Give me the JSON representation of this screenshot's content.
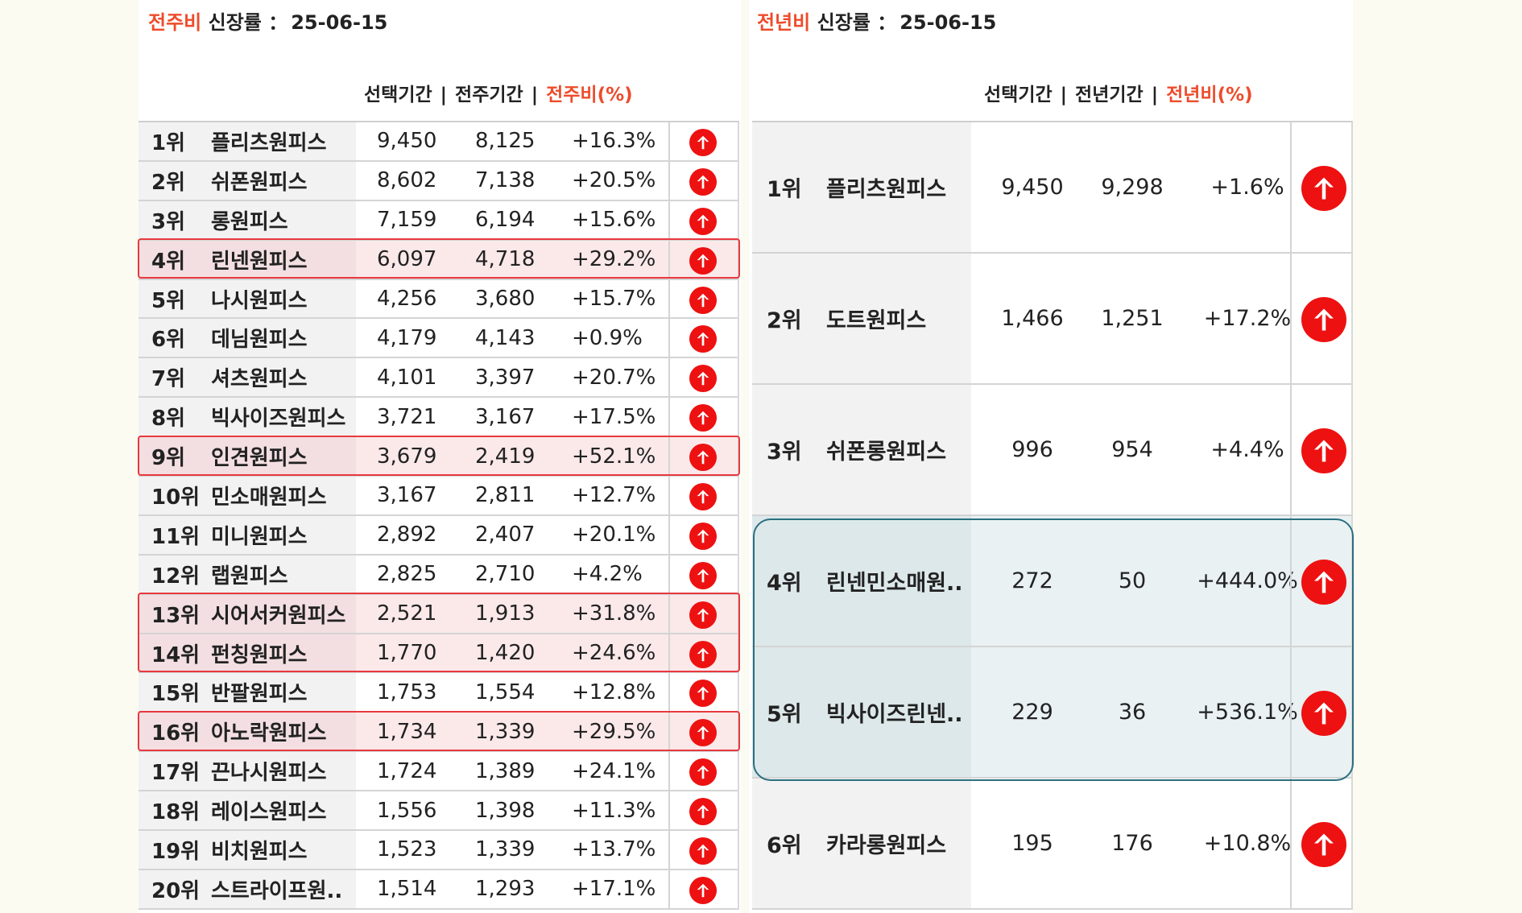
{
  "left": {
    "title_accent": "전주비",
    "title_rest": "신장률 ：",
    "date": "25-06-15",
    "headers": {
      "selected": "선택기간",
      "sep": "|",
      "previous": "전주기간",
      "ratio": "전주비(%)"
    },
    "rows": [
      {
        "rank": "1위",
        "name": "플리츠원피스",
        "selected": "9,450",
        "previous": "8,125",
        "ratio": "+16.3%"
      },
      {
        "rank": "2위",
        "name": "쉬폰원피스",
        "selected": "8,602",
        "previous": "7,138",
        "ratio": "+20.5%"
      },
      {
        "rank": "3위",
        "name": "롱원피스",
        "selected": "7,159",
        "previous": "6,194",
        "ratio": "+15.6%"
      },
      {
        "rank": "4위",
        "name": "린넨원피스",
        "selected": "6,097",
        "previous": "4,718",
        "ratio": "+29.2%"
      },
      {
        "rank": "5위",
        "name": "나시원피스",
        "selected": "4,256",
        "previous": "3,680",
        "ratio": "+15.7%"
      },
      {
        "rank": "6위",
        "name": "데님원피스",
        "selected": "4,179",
        "previous": "4,143",
        "ratio": "+0.9%"
      },
      {
        "rank": "7위",
        "name": "셔츠원피스",
        "selected": "4,101",
        "previous": "3,397",
        "ratio": "+20.7%"
      },
      {
        "rank": "8위",
        "name": "빅사이즈원피스",
        "selected": "3,721",
        "previous": "3,167",
        "ratio": "+17.5%"
      },
      {
        "rank": "9위",
        "name": "인견원피스",
        "selected": "3,679",
        "previous": "2,419",
        "ratio": "+52.1%"
      },
      {
        "rank": "10위",
        "name": "민소매원피스",
        "selected": "3,167",
        "previous": "2,811",
        "ratio": "+12.7%"
      },
      {
        "rank": "11위",
        "name": "미니원피스",
        "selected": "2,892",
        "previous": "2,407",
        "ratio": "+20.1%"
      },
      {
        "rank": "12위",
        "name": "랩원피스",
        "selected": "2,825",
        "previous": "2,710",
        "ratio": "+4.2%"
      },
      {
        "rank": "13위",
        "name": "시어서커원피스",
        "selected": "2,521",
        "previous": "1,913",
        "ratio": "+31.8%"
      },
      {
        "rank": "14위",
        "name": "펀칭원피스",
        "selected": "1,770",
        "previous": "1,420",
        "ratio": "+24.6%"
      },
      {
        "rank": "15위",
        "name": "반팔원피스",
        "selected": "1,753",
        "previous": "1,554",
        "ratio": "+12.8%"
      },
      {
        "rank": "16위",
        "name": "아노락원피스",
        "selected": "1,734",
        "previous": "1,339",
        "ratio": "+29.5%"
      },
      {
        "rank": "17위",
        "name": "끈나시원피스",
        "selected": "1,724",
        "previous": "1,389",
        "ratio": "+24.1%"
      },
      {
        "rank": "18위",
        "name": "레이스원피스",
        "selected": "1,556",
        "previous": "1,398",
        "ratio": "+11.3%"
      },
      {
        "rank": "19위",
        "name": "비치원피스",
        "selected": "1,523",
        "previous": "1,339",
        "ratio": "+13.7%"
      },
      {
        "rank": "20위",
        "name": "스트라이프원..",
        "selected": "1,514",
        "previous": "1,293",
        "ratio": "+17.1%"
      }
    ]
  },
  "right": {
    "title_accent": "전년비",
    "title_rest": "신장률 ：",
    "date": "25-06-15",
    "headers": {
      "selected": "선택기간",
      "sep": "|",
      "previous": "전년기간",
      "ratio": "전년비(%)"
    },
    "rows": [
      {
        "rank": "1위",
        "name": "플리츠원피스",
        "selected": "9,450",
        "previous": "9,298",
        "ratio": "+1.6%"
      },
      {
        "rank": "2위",
        "name": "도트원피스",
        "selected": "1,466",
        "previous": "1,251",
        "ratio": "+17.2%"
      },
      {
        "rank": "3위",
        "name": "쉬폰롱원피스",
        "selected": "996",
        "previous": "954",
        "ratio": "+4.4%"
      },
      {
        "rank": "4위",
        "name": "린넨민소매원..",
        "selected": "272",
        "previous": "50",
        "ratio": "+444.0%"
      },
      {
        "rank": "5위",
        "name": "빅사이즈린넨..",
        "selected": "229",
        "previous": "36",
        "ratio": "+536.1%"
      },
      {
        "rank": "6위",
        "name": "카라롱원피스",
        "selected": "195",
        "previous": "176",
        "ratio": "+10.8%"
      }
    ]
  },
  "colors": {
    "accent": "#ee4b2b",
    "arrow": "#ee1111",
    "highlight_red": "#e8393f",
    "highlight_teal": "#2a6f7f"
  },
  "icons": {
    "trend": "arrow-up-circle-icon"
  }
}
